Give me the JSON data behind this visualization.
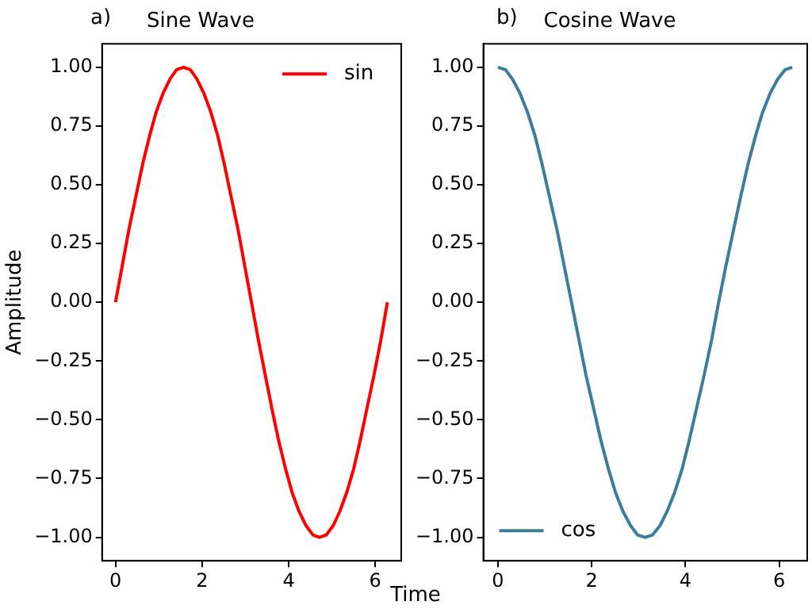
{
  "chart_data": [
    {
      "type": "line",
      "title": "Sine Wave",
      "xlabel": "Time",
      "ylabel": "Amplitude",
      "annotations": [
        "a)"
      ],
      "legend": "top right",
      "grid": false,
      "marker": "none",
      "line_style": "solid",
      "x": [
        0,
        0.16,
        0.31,
        0.47,
        0.63,
        0.79,
        0.94,
        1.1,
        1.26,
        1.41,
        1.57,
        1.73,
        1.88,
        2.04,
        2.2,
        2.36,
        2.51,
        2.67,
        2.83,
        2.98,
        3.14,
        3.3,
        3.46,
        3.61,
        3.77,
        3.93,
        4.08,
        4.24,
        4.4,
        4.56,
        4.71,
        4.87,
        5.03,
        5.18,
        5.34,
        5.5,
        5.65,
        5.81,
        5.97,
        6.13,
        6.28
      ],
      "series": [
        {
          "name": "sin",
          "color": "#ff0000",
          "values": [
            0,
            0.16,
            0.31,
            0.45,
            0.59,
            0.71,
            0.81,
            0.89,
            0.95,
            0.99,
            1,
            0.99,
            0.95,
            0.89,
            0.81,
            0.71,
            0.59,
            0.45,
            0.31,
            0.16,
            0,
            -0.16,
            -0.31,
            -0.45,
            -0.59,
            -0.71,
            -0.81,
            -0.89,
            -0.95,
            -0.99,
            -1,
            -0.99,
            -0.95,
            -0.89,
            -0.81,
            -0.71,
            -0.59,
            -0.45,
            -0.31,
            -0.16,
            0
          ]
        }
      ],
      "xlim": [
        -0.31,
        6.6
      ],
      "xticks": [
        0,
        2,
        4,
        6
      ],
      "ylim": [
        -1.1,
        1.1
      ],
      "yticks": [
        {
          "value": -1,
          "label": "−1.00"
        },
        {
          "value": -0.75,
          "label": "−0.75"
        },
        {
          "value": -0.5,
          "label": "−0.50"
        },
        {
          "value": -0.25,
          "label": "−0.25"
        },
        {
          "value": 0,
          "label": "0.00"
        },
        {
          "value": 0.25,
          "label": "0.25"
        },
        {
          "value": 0.5,
          "label": "0.50"
        },
        {
          "value": 0.75,
          "label": "0.75"
        },
        {
          "value": 1,
          "label": "1.00"
        }
      ]
    },
    {
      "type": "line",
      "title": "Cosine Wave",
      "annotations": [
        "b)"
      ],
      "legend": "bottom left",
      "grid": false,
      "marker": "none",
      "line_style": "solid",
      "x": [
        0,
        0.16,
        0.31,
        0.47,
        0.63,
        0.79,
        0.94,
        1.1,
        1.26,
        1.41,
        1.57,
        1.73,
        1.88,
        2.04,
        2.2,
        2.36,
        2.51,
        2.67,
        2.83,
        2.98,
        3.14,
        3.3,
        3.46,
        3.61,
        3.77,
        3.93,
        4.08,
        4.24,
        4.4,
        4.56,
        4.71,
        4.87,
        5.03,
        5.18,
        5.34,
        5.5,
        5.65,
        5.81,
        5.97,
        6.13,
        6.28
      ],
      "series": [
        {
          "name": "cos",
          "color": "#3b7d9b",
          "values": [
            1,
            0.99,
            0.95,
            0.89,
            0.81,
            0.71,
            0.59,
            0.45,
            0.31,
            0.16,
            0,
            -0.16,
            -0.31,
            -0.45,
            -0.59,
            -0.71,
            -0.81,
            -0.89,
            -0.95,
            -0.99,
            -1,
            -0.99,
            -0.95,
            -0.89,
            -0.81,
            -0.71,
            -0.59,
            -0.45,
            -0.31,
            -0.16,
            0,
            0.16,
            0.31,
            0.45,
            0.59,
            0.71,
            0.81,
            0.89,
            0.95,
            0.99,
            1
          ]
        }
      ],
      "xlim": [
        -0.31,
        6.6
      ],
      "xticks": [
        0,
        2,
        4,
        6
      ],
      "ylim": [
        -1.1,
        1.1
      ],
      "yticks": [
        {
          "value": -1,
          "label": "−1.00"
        },
        {
          "value": -0.75,
          "label": "−0.75"
        },
        {
          "value": -0.5,
          "label": "−0.50"
        },
        {
          "value": -0.25,
          "label": "−0.25"
        },
        {
          "value": 0,
          "label": "0.00"
        },
        {
          "value": 0.25,
          "label": "0.25"
        },
        {
          "value": 0.5,
          "label": "0.50"
        },
        {
          "value": 0.75,
          "label": "0.75"
        },
        {
          "value": 1,
          "label": "1.00"
        }
      ]
    }
  ]
}
